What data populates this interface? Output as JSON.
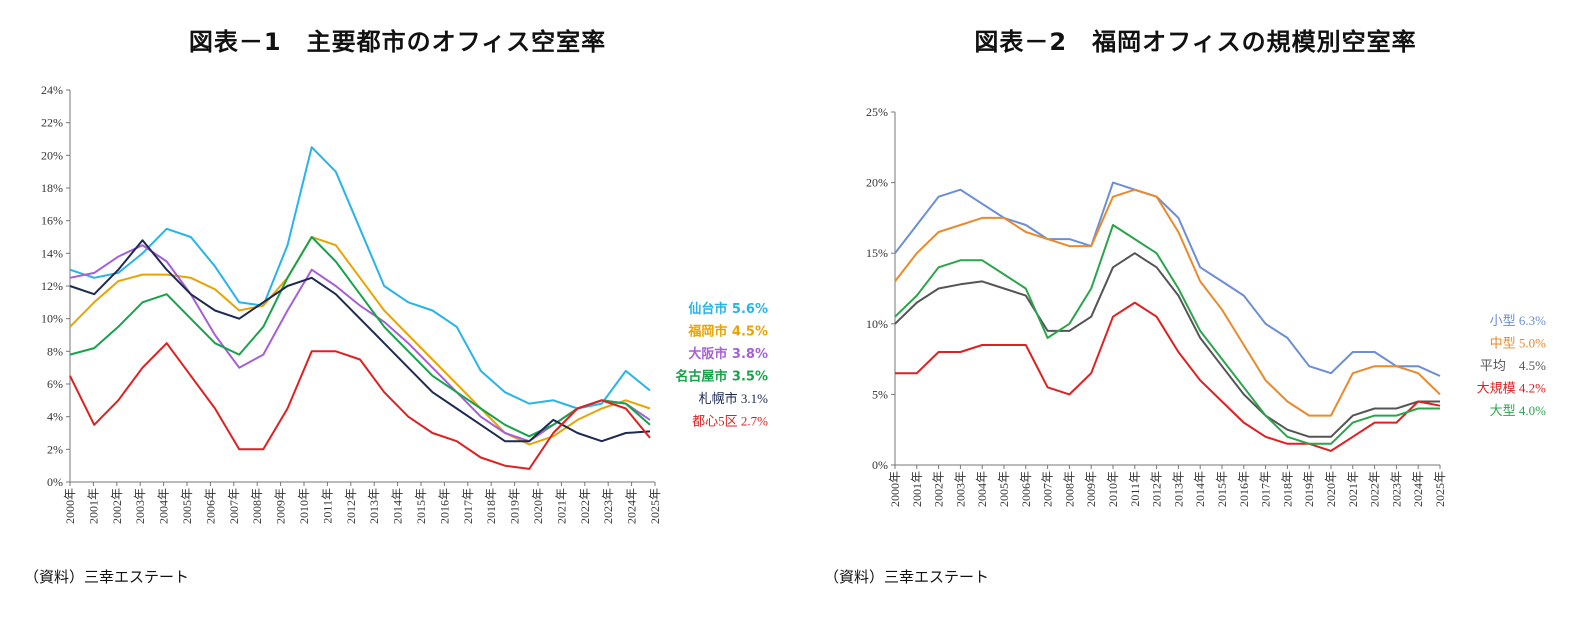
{
  "panel1": {
    "title": "図表－1　主要都市のオフィス空室率",
    "source": "（資料）三幸エステート",
    "chart_data": {
      "type": "line",
      "x": [
        "2001年",
        "2002年",
        "2003年",
        "2004年",
        "2005年",
        "2006年",
        "2007年",
        "2008年",
        "2009年",
        "2010年",
        "2011年",
        "2012年",
        "2013年",
        "2014年",
        "2015年",
        "2016年",
        "2017年",
        "2018年",
        "2019年",
        "2020年",
        "2021年",
        "2022年",
        "2023年",
        "2024年",
        "2025年"
      ],
      "x_start_label": "2000年",
      "ytick_labels": [
        "0%",
        "2%",
        "4%",
        "6%",
        "8%",
        "10%",
        "12%",
        "14%",
        "16%",
        "18%",
        "20%",
        "22%",
        "24%"
      ],
      "ylim": [
        0,
        24
      ],
      "grid": false,
      "series": [
        {
          "name": "仙台市 5.6%",
          "color": "#27b4e8",
          "label_bold": true,
          "values": [
            13.0,
            12.5,
            12.8,
            14.0,
            15.5,
            15.0,
            13.2,
            11.0,
            10.8,
            14.5,
            20.5,
            19.0,
            15.5,
            12.0,
            11.0,
            10.5,
            9.5,
            6.8,
            5.5,
            4.8,
            5.0,
            4.5,
            4.8,
            6.8,
            5.6
          ]
        },
        {
          "name": "福岡市 4.5%",
          "color": "#e8a400",
          "label_bold": true,
          "values": [
            9.5,
            11.0,
            12.3,
            12.7,
            12.7,
            12.5,
            11.8,
            10.5,
            10.8,
            12.5,
            15.0,
            14.5,
            12.5,
            10.5,
            9.0,
            7.5,
            6.0,
            4.5,
            3.0,
            2.3,
            2.8,
            3.8,
            4.5,
            5.0,
            4.5
          ]
        },
        {
          "name": "大阪市 3.8%",
          "color": "#a65fd8",
          "label_bold": true,
          "values": [
            12.5,
            12.8,
            13.8,
            14.5,
            13.5,
            11.5,
            9.0,
            7.0,
            7.8,
            10.5,
            13.0,
            12.0,
            10.8,
            9.8,
            8.5,
            7.0,
            5.5,
            4.0,
            3.0,
            2.5,
            3.5,
            4.5,
            5.0,
            4.8,
            3.8
          ]
        },
        {
          "name": "名古屋市 3.5%",
          "color": "#16a34a",
          "label_bold": true,
          "values": [
            7.8,
            8.2,
            9.5,
            11.0,
            11.5,
            10.0,
            8.5,
            7.8,
            9.5,
            12.5,
            15.0,
            13.5,
            11.5,
            9.5,
            8.0,
            6.5,
            5.5,
            4.5,
            3.5,
            2.8,
            3.5,
            4.5,
            5.0,
            4.8,
            3.5
          ]
        },
        {
          "name": "札幌市 3.1%",
          "color": "#1e2a52",
          "label_bold": false,
          "values": [
            12.0,
            11.5,
            13.0,
            14.8,
            13.0,
            11.5,
            10.5,
            10.0,
            11.0,
            12.0,
            12.5,
            11.5,
            10.0,
            8.5,
            7.0,
            5.5,
            4.5,
            3.5,
            2.5,
            2.5,
            3.8,
            3.0,
            2.5,
            3.0,
            3.1
          ]
        },
        {
          "name": "都心5区 2.7%",
          "color": "#e02020",
          "label_bold": false,
          "values": [
            6.5,
            3.5,
            5.0,
            7.0,
            8.5,
            6.5,
            4.5,
            2.0,
            2.0,
            4.5,
            8.0,
            8.0,
            7.5,
            5.5,
            4.0,
            3.0,
            2.5,
            1.5,
            1.0,
            0.8,
            3.0,
            4.5,
            5.0,
            4.5,
            2.7
          ]
        }
      ]
    }
  },
  "panel2": {
    "title": "図表－2　福岡オフィスの規模別空室率",
    "source": "（資料）三幸エステート",
    "chart_data": {
      "type": "line",
      "x": [
        "2000年",
        "2001年",
        "2002年",
        "2003年",
        "2004年",
        "2005年",
        "2006年",
        "2007年",
        "2008年",
        "2009年",
        "2010年",
        "2011年",
        "2012年",
        "2013年",
        "2014年",
        "2015年",
        "2016年",
        "2017年",
        "2018年",
        "2019年",
        "2020年",
        "2021年",
        "2022年",
        "2023年",
        "2024年",
        "2025年"
      ],
      "ytick_labels": [
        "0%",
        "5%",
        "10%",
        "15%",
        "20%",
        "25%"
      ],
      "ylim": [
        0,
        25
      ],
      "grid": false,
      "series": [
        {
          "name": "小型 6.3%",
          "color": "#6b8ed6",
          "values": [
            15.0,
            17.0,
            19.0,
            19.5,
            18.5,
            17.5,
            17.0,
            16.0,
            16.0,
            15.5,
            20.0,
            19.5,
            19.0,
            17.5,
            14.0,
            13.0,
            12.0,
            10.0,
            9.0,
            7.0,
            6.5,
            8.0,
            8.0,
            7.0,
            7.0,
            6.3
          ]
        },
        {
          "name": "中型 5.0%",
          "color": "#e98a2c",
          "values": [
            13.0,
            15.0,
            16.5,
            17.0,
            17.5,
            17.5,
            16.5,
            16.0,
            15.5,
            15.5,
            19.0,
            19.5,
            19.0,
            16.5,
            13.0,
            11.0,
            8.5,
            6.0,
            4.5,
            3.5,
            3.5,
            6.5,
            7.0,
            7.0,
            6.5,
            5.0
          ]
        },
        {
          "name": "平均　4.5%",
          "color": "#555555",
          "values": [
            10.0,
            11.5,
            12.5,
            12.8,
            13.0,
            12.5,
            12.0,
            9.5,
            9.5,
            10.5,
            14.0,
            15.0,
            14.0,
            12.0,
            9.0,
            7.0,
            5.0,
            3.5,
            2.5,
            2.0,
            2.0,
            3.5,
            4.0,
            4.0,
            4.5,
            4.5
          ]
        },
        {
          "name": "大規模 4.2%",
          "color": "#e02020",
          "values": [
            6.5,
            6.5,
            8.0,
            8.0,
            8.5,
            8.5,
            8.5,
            5.5,
            5.0,
            6.5,
            10.5,
            11.5,
            10.5,
            8.0,
            6.0,
            4.5,
            3.0,
            2.0,
            1.5,
            1.5,
            1.0,
            2.0,
            3.0,
            3.0,
            4.5,
            4.2
          ]
        },
        {
          "name": "大型 4.0%",
          "color": "#2ca44c",
          "values": [
            10.5,
            12.0,
            14.0,
            14.5,
            14.5,
            13.5,
            12.5,
            9.0,
            10.0,
            12.5,
            17.0,
            16.0,
            15.0,
            12.5,
            9.5,
            7.5,
            5.5,
            3.5,
            2.0,
            1.5,
            1.5,
            3.0,
            3.5,
            3.5,
            4.0,
            4.0
          ]
        }
      ]
    }
  }
}
